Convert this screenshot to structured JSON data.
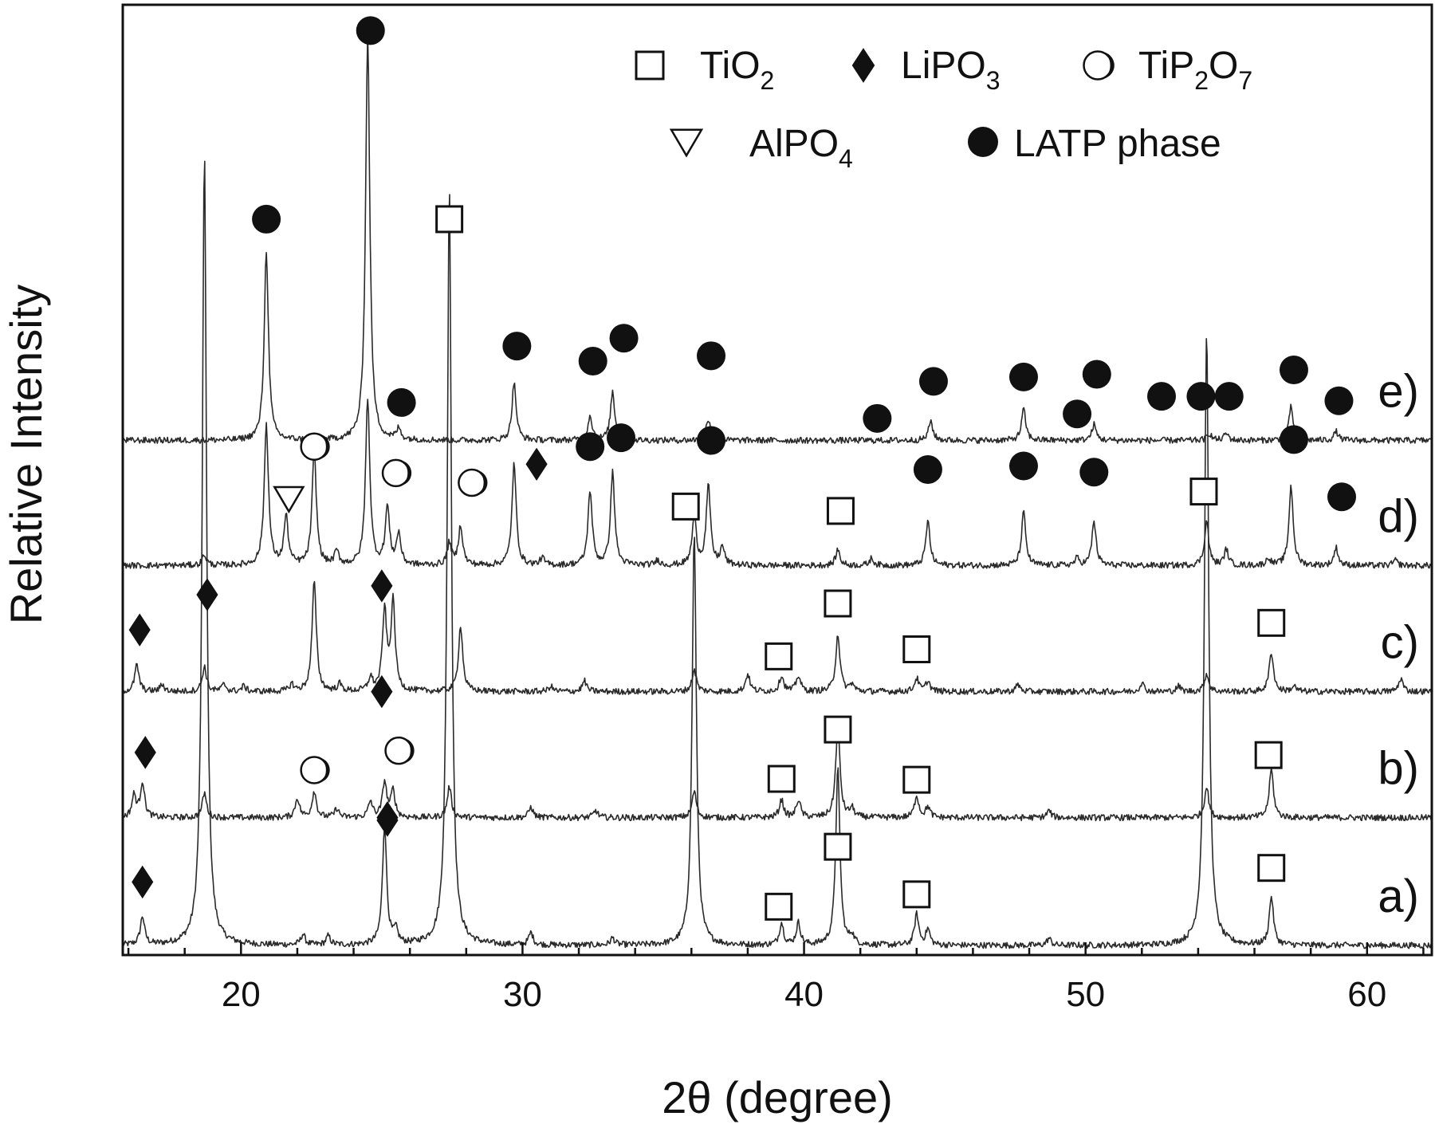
{
  "chart_data": {
    "type": "line",
    "xlabel": "2θ (degree)",
    "ylabel": "Relative Intensity",
    "xlim": [
      15.8,
      62.3
    ],
    "ylim": [
      0,
      10.6
    ],
    "x_ticks": [
      20,
      30,
      40,
      50,
      60
    ],
    "y_ticks_shown": false,
    "grid": false,
    "legend_position": "top-right",
    "legend": [
      {
        "marker": "open-square",
        "label": "TiO",
        "sub": "2",
        "label_after": ""
      },
      {
        "marker": "filled-diamond",
        "label": "LiPO",
        "sub": "3",
        "label_after": ""
      },
      {
        "marker": "half-filled-circle",
        "label": "TiP",
        "sub": "2",
        "label_after": "O",
        "sub2": "7"
      },
      {
        "marker": "open-triangle-down",
        "label": "AlPO",
        "sub": "4",
        "label_after": ""
      },
      {
        "marker": "filled-circle",
        "label": "LATP phase",
        "sub": "",
        "label_after": ""
      }
    ],
    "series": [
      {
        "name": "a)",
        "baseline": 0,
        "peaks": [
          [
            16.5,
            0.32
          ],
          [
            18.7,
            9.0
          ],
          [
            22.2,
            0.12
          ],
          [
            23.1,
            0.1
          ],
          [
            25.1,
            1.35
          ],
          [
            25.5,
            0.15
          ],
          [
            27.4,
            8.6
          ],
          [
            30.3,
            0.14
          ],
          [
            33.2,
            0.08
          ],
          [
            36.1,
            4.7
          ],
          [
            39.2,
            0.25
          ],
          [
            39.8,
            0.25
          ],
          [
            41.2,
            2.0
          ],
          [
            41.7,
            0.1
          ],
          [
            44.0,
            0.35
          ],
          [
            44.4,
            0.18
          ],
          [
            48.7,
            0.08
          ],
          [
            54.3,
            7.0
          ],
          [
            56.6,
            0.55
          ]
        ],
        "markers": [
          {
            "x": 16.5,
            "y": 0.72,
            "type": "filled-diamond"
          },
          {
            "x": 25.2,
            "y": 1.45,
            "type": "filled-diamond"
          },
          {
            "x": 39.1,
            "y": 0.44,
            "type": "open-square"
          },
          {
            "x": 41.2,
            "y": 1.12,
            "type": "open-square"
          },
          {
            "x": 44.0,
            "y": 0.58,
            "type": "open-square"
          },
          {
            "x": 56.6,
            "y": 0.88,
            "type": "open-square"
          }
        ]
      },
      {
        "name": "b)",
        "baseline": 1.45,
        "peaks": [
          [
            16.2,
            0.25
          ],
          [
            16.5,
            0.4
          ],
          [
            18.7,
            0.28
          ],
          [
            22.0,
            0.22
          ],
          [
            22.6,
            0.3
          ],
          [
            23.4,
            0.1
          ],
          [
            24.6,
            0.18
          ],
          [
            25.1,
            0.4
          ],
          [
            25.4,
            0.3
          ],
          [
            27.4,
            0.35
          ],
          [
            30.3,
            0.12
          ],
          [
            32.6,
            0.08
          ],
          [
            36.1,
            0.3
          ],
          [
            39.2,
            0.2
          ],
          [
            39.8,
            0.2
          ],
          [
            41.2,
            1.05
          ],
          [
            41.7,
            0.1
          ],
          [
            44.0,
            0.25
          ],
          [
            44.4,
            0.12
          ],
          [
            48.7,
            0.08
          ],
          [
            54.3,
            0.35
          ],
          [
            56.6,
            0.55
          ]
        ],
        "markers": [
          {
            "x": 16.6,
            "y": 2.19,
            "type": "filled-diamond"
          },
          {
            "x": 22.6,
            "y": 1.99,
            "type": "half-filled-circle"
          },
          {
            "x": 25.6,
            "y": 2.21,
            "type": "half-filled-circle"
          },
          {
            "x": 25.2,
            "y": 1.42,
            "type": "filled-diamond"
          },
          {
            "x": 39.2,
            "y": 1.89,
            "type": "open-square"
          },
          {
            "x": 41.2,
            "y": 2.45,
            "type": "open-square"
          },
          {
            "x": 44.0,
            "y": 1.88,
            "type": "open-square"
          },
          {
            "x": 56.5,
            "y": 2.16,
            "type": "open-square"
          }
        ]
      },
      {
        "name": "c)",
        "baseline": 2.88,
        "peaks": [
          [
            16.3,
            0.3
          ],
          [
            17.2,
            0.08
          ],
          [
            18.7,
            0.28
          ],
          [
            19.4,
            0.08
          ],
          [
            20.1,
            0.06
          ],
          [
            21.8,
            0.08
          ],
          [
            22.6,
            1.25
          ],
          [
            23.5,
            0.08
          ],
          [
            24.6,
            0.15
          ],
          [
            25.1,
            0.9
          ],
          [
            25.4,
            1.0
          ],
          [
            27.8,
            0.75
          ],
          [
            31.0,
            0.06
          ],
          [
            32.2,
            0.12
          ],
          [
            36.1,
            0.25
          ],
          [
            38.0,
            0.2
          ],
          [
            39.2,
            0.18
          ],
          [
            39.8,
            0.18
          ],
          [
            41.2,
            0.65
          ],
          [
            41.7,
            0.08
          ],
          [
            44.0,
            0.15
          ],
          [
            44.4,
            0.12
          ],
          [
            47.6,
            0.08
          ],
          [
            52.0,
            0.1
          ],
          [
            53.3,
            0.06
          ],
          [
            54.3,
            0.2
          ],
          [
            56.6,
            0.45
          ],
          [
            57.4,
            0.06
          ],
          [
            61.2,
            0.15
          ]
        ],
        "markers": [
          {
            "x": 16.4,
            "y": 3.58,
            "type": "filled-diamond"
          },
          {
            "x": 18.8,
            "y": 3.98,
            "type": "filled-diamond"
          },
          {
            "x": 25.0,
            "y": 4.08,
            "type": "filled-diamond"
          },
          {
            "x": 25.0,
            "y": 2.88,
            "type": "filled-diamond"
          },
          {
            "x": 39.1,
            "y": 3.28,
            "type": "open-square"
          },
          {
            "x": 41.2,
            "y": 3.88,
            "type": "open-square"
          },
          {
            "x": 44.0,
            "y": 3.36,
            "type": "open-square"
          },
          {
            "x": 56.6,
            "y": 3.66,
            "type": "open-square"
          }
        ]
      },
      {
        "name": "d)",
        "baseline": 4.31,
        "peaks": [
          [
            18.7,
            0.12
          ],
          [
            20.9,
            1.6
          ],
          [
            21.6,
            0.55
          ],
          [
            22.6,
            1.3
          ],
          [
            23.4,
            0.15
          ],
          [
            24.5,
            1.9
          ],
          [
            25.2,
            0.65
          ],
          [
            25.6,
            0.35
          ],
          [
            27.4,
            0.25
          ],
          [
            27.8,
            0.45
          ],
          [
            29.7,
            1.15
          ],
          [
            30.7,
            0.08
          ],
          [
            32.4,
            0.85
          ],
          [
            33.2,
            1.05
          ],
          [
            34.8,
            0.06
          ],
          [
            36.1,
            0.55
          ],
          [
            36.6,
            0.9
          ],
          [
            37.1,
            0.2
          ],
          [
            41.2,
            0.18
          ],
          [
            42.4,
            0.08
          ],
          [
            44.4,
            0.5
          ],
          [
            47.8,
            0.6
          ],
          [
            49.7,
            0.08
          ],
          [
            50.3,
            0.5
          ],
          [
            54.3,
            0.5
          ],
          [
            55.0,
            0.18
          ],
          [
            56.5,
            0.08
          ],
          [
            57.3,
            0.9
          ],
          [
            58.9,
            0.2
          ],
          [
            61.0,
            0.06
          ]
        ],
        "markers": [
          {
            "x": 21.7,
            "y": 5.07,
            "type": "open-triangle-down"
          },
          {
            "x": 22.6,
            "y": 5.66,
            "type": "half-filled-circle"
          },
          {
            "x": 25.5,
            "y": 5.36,
            "type": "half-filled-circle"
          },
          {
            "x": 28.2,
            "y": 5.25,
            "type": "half-filled-circle"
          },
          {
            "x": 30.5,
            "y": 5.46,
            "type": "filled-diamond"
          },
          {
            "x": 32.4,
            "y": 5.66,
            "type": "filled-circle"
          },
          {
            "x": 33.5,
            "y": 5.76,
            "type": "filled-circle"
          },
          {
            "x": 36.7,
            "y": 5.73,
            "type": "filled-circle"
          },
          {
            "x": 35.8,
            "y": 4.98,
            "type": "open-square"
          },
          {
            "x": 41.3,
            "y": 4.93,
            "type": "open-square"
          },
          {
            "x": 44.4,
            "y": 5.4,
            "type": "filled-circle"
          },
          {
            "x": 47.8,
            "y": 5.44,
            "type": "filled-circle"
          },
          {
            "x": 50.3,
            "y": 5.37,
            "type": "filled-circle"
          },
          {
            "x": 54.2,
            "y": 5.15,
            "type": "open-square"
          },
          {
            "x": 57.4,
            "y": 5.74,
            "type": "filled-circle"
          },
          {
            "x": 59.1,
            "y": 5.09,
            "type": "filled-circle"
          }
        ]
      },
      {
        "name": "e)",
        "baseline": 5.73,
        "peaks": [
          [
            20.9,
            2.15
          ],
          [
            24.5,
            4.6
          ],
          [
            25.6,
            0.12
          ],
          [
            29.7,
            0.65
          ],
          [
            32.4,
            0.28
          ],
          [
            33.2,
            0.55
          ],
          [
            36.6,
            0.25
          ],
          [
            44.5,
            0.22
          ],
          [
            47.8,
            0.35
          ],
          [
            50.3,
            0.18
          ],
          [
            54.4,
            0.08
          ],
          [
            55.0,
            0.08
          ],
          [
            57.3,
            0.38
          ],
          [
            58.9,
            0.1
          ]
        ],
        "markers": [
          {
            "x": 20.9,
            "y": 8.24,
            "type": "filled-circle"
          },
          {
            "x": 24.6,
            "y": 10.38,
            "type": "filled-circle"
          },
          {
            "x": 25.7,
            "y": 6.16,
            "type": "filled-circle"
          },
          {
            "x": 29.8,
            "y": 6.8,
            "type": "filled-circle"
          },
          {
            "x": 32.5,
            "y": 6.63,
            "type": "filled-circle"
          },
          {
            "x": 33.6,
            "y": 6.89,
            "type": "filled-circle"
          },
          {
            "x": 36.7,
            "y": 6.69,
            "type": "filled-circle"
          },
          {
            "x": 42.6,
            "y": 5.98,
            "type": "filled-circle"
          },
          {
            "x": 44.6,
            "y": 6.4,
            "type": "filled-circle"
          },
          {
            "x": 47.8,
            "y": 6.45,
            "type": "filled-circle"
          },
          {
            "x": 49.7,
            "y": 6.03,
            "type": "filled-circle"
          },
          {
            "x": 50.4,
            "y": 6.48,
            "type": "filled-circle"
          },
          {
            "x": 52.7,
            "y": 6.23,
            "type": "filled-circle"
          },
          {
            "x": 54.1,
            "y": 6.23,
            "type": "filled-circle"
          },
          {
            "x": 55.1,
            "y": 6.23,
            "type": "filled-circle"
          },
          {
            "x": 57.4,
            "y": 6.53,
            "type": "filled-circle"
          },
          {
            "x": 59.0,
            "y": 6.18,
            "type": "filled-circle"
          }
        ]
      }
    ],
    "extra_markers": [
      {
        "x": 27.4,
        "y": 8.24,
        "type": "open-square"
      }
    ]
  }
}
